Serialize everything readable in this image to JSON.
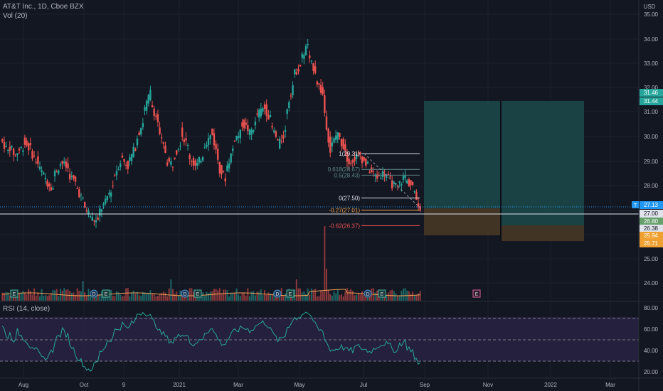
{
  "header": {
    "symbol_line": "AT&T Inc., 1D, Cboe BZX",
    "volume_label": "Vol (20)",
    "currency": "USD"
  },
  "rsi": {
    "label": "RSI (14, close)",
    "levels": [
      70,
      50,
      30
    ],
    "axis_ticks": [
      "80.00",
      "60.00",
      "40.00",
      "20.00"
    ]
  },
  "colors": {
    "background": "#131722",
    "up": "#26a69a",
    "down": "#ef5350",
    "grid": "#1e222d",
    "rsi_line": "#26a69a",
    "rsi_band": "#2a2345",
    "long_profit": "#1c4a4a",
    "long_loss": "#4a3a26",
    "current_price": "#2196f3"
  },
  "chart_data": {
    "type": "candlestick",
    "x_axis": [
      "Aug",
      "Oct",
      "9",
      "2021",
      "Mar",
      "May",
      "Jul",
      "Sep",
      "Nov",
      "2022",
      "Mar"
    ],
    "y_axis": [
      "35.00",
      "34.00",
      "33.00",
      "32.00",
      "31.00",
      "30.00",
      "29.00",
      "28.00",
      "25.00",
      "24.00"
    ],
    "ylim": [
      23.6,
      35.3
    ],
    "fib_levels": [
      {
        "label": "1(29.31)",
        "value": 29.31
      },
      {
        "label": "0.618(28.67)",
        "value": 28.67
      },
      {
        "label": "0.5(28.43)",
        "value": 28.43
      },
      {
        "label": "0(27.50)",
        "value": 27.5
      },
      {
        "label": "-0.27(27.01)",
        "value": 27.01
      },
      {
        "label": "-0.62(26.37)",
        "value": 26.37
      }
    ],
    "price_tags": [
      {
        "label": "31.46",
        "value": 31.46,
        "color": "#26a69a"
      },
      {
        "label": "31.44",
        "value": 31.44,
        "color": "#26a69a"
      },
      {
        "label": "T",
        "value": 27.13,
        "color": "#2196f3"
      },
      {
        "label": "27.13",
        "value": 27.13,
        "color": "#2196f3"
      },
      {
        "label": "27.00",
        "value": 26.99,
        "color": "#e0e3eb"
      },
      {
        "label": "26.80",
        "value": 26.8,
        "color": "#66a06a"
      },
      {
        "label": "26.38",
        "value": 26.38,
        "color": "#e0e3eb"
      },
      {
        "label": "25.94",
        "value": 25.94,
        "color": "#f0a030"
      },
      {
        "label": "25.71",
        "value": 25.71,
        "color": "#f0a030"
      }
    ],
    "close_path": [
      [
        29.9,
        29.4
      ],
      [
        29.7,
        29.2
      ],
      [
        29.3,
        29.6
      ],
      [
        29.8,
        29.5
      ],
      [
        29.4,
        28.9
      ],
      [
        28.8,
        28.3
      ],
      [
        28.2,
        27.9
      ],
      [
        28.4,
        28.9
      ],
      [
        29.0,
        28.7
      ],
      [
        28.5,
        28.1
      ],
      [
        28.0,
        27.4
      ],
      [
        27.2,
        26.8
      ],
      [
        26.7,
        26.5
      ],
      [
        26.9,
        27.3
      ],
      [
        27.4,
        28.0
      ],
      [
        28.3,
        29.0
      ],
      [
        29.2,
        28.8
      ],
      [
        28.9,
        29.6
      ],
      [
        29.8,
        30.6
      ],
      [
        30.9,
        31.8
      ],
      [
        31.4,
        30.6
      ],
      [
        30.2,
        29.4
      ],
      [
        29.0,
        28.9
      ],
      [
        29.1,
        29.8
      ],
      [
        30.2,
        29.6
      ],
      [
        29.3,
        28.8
      ],
      [
        28.7,
        29.3
      ],
      [
        29.6,
        30.0
      ],
      [
        30.4,
        29.1
      ],
      [
        28.8,
        28.3
      ],
      [
        28.6,
        29.5
      ],
      [
        29.9,
        30.1
      ],
      [
        30.6,
        30.3
      ],
      [
        30.0,
        30.5
      ],
      [
        30.8,
        31.1
      ],
      [
        31.3,
        30.7
      ],
      [
        30.5,
        29.8
      ],
      [
        29.6,
        30.2
      ],
      [
        30.9,
        32.1
      ],
      [
        32.5,
        32.9
      ],
      [
        33.1,
        33.8
      ],
      [
        33.2,
        32.7
      ],
      [
        32.4,
        31.7
      ],
      [
        31.5,
        29.4
      ],
      [
        29.5,
        30.2
      ],
      [
        30.0,
        29.5
      ],
      [
        29.2,
        28.9
      ],
      [
        29.1,
        29.3
      ],
      [
        29.2,
        28.8
      ],
      [
        28.7,
        28.4
      ],
      [
        28.3,
        28.5
      ],
      [
        28.6,
        28.2
      ],
      [
        28.1,
        27.9
      ],
      [
        28.0,
        28.4
      ],
      [
        28.2,
        28.0
      ],
      [
        27.8,
        27.1
      ]
    ],
    "rsi_path": [
      [
        66,
        52
      ],
      [
        58,
        48
      ],
      [
        60,
        52
      ],
      [
        54,
        44
      ],
      [
        47,
        38
      ],
      [
        36,
        30
      ],
      [
        34,
        40
      ],
      [
        48,
        55
      ],
      [
        60,
        54
      ],
      [
        50,
        38
      ],
      [
        36,
        28
      ],
      [
        25,
        22
      ],
      [
        22,
        30
      ],
      [
        36,
        44
      ],
      [
        48,
        52
      ],
      [
        58,
        62
      ],
      [
        66,
        60
      ],
      [
        62,
        68
      ],
      [
        74,
        76
      ],
      [
        78,
        72
      ],
      [
        70,
        62
      ],
      [
        58,
        54
      ],
      [
        52,
        48
      ],
      [
        50,
        54
      ],
      [
        58,
        54
      ],
      [
        50,
        44
      ],
      [
        46,
        52
      ],
      [
        56,
        60
      ],
      [
        62,
        52
      ],
      [
        48,
        46
      ],
      [
        48,
        56
      ],
      [
        58,
        60
      ],
      [
        62,
        60
      ],
      [
        58,
        62
      ],
      [
        64,
        66
      ],
      [
        68,
        62
      ],
      [
        58,
        50
      ],
      [
        48,
        54
      ],
      [
        60,
        68
      ],
      [
        70,
        72
      ],
      [
        74,
        76
      ],
      [
        72,
        66
      ],
      [
        62,
        58
      ],
      [
        56,
        40
      ],
      [
        40,
        42
      ],
      [
        44,
        42
      ],
      [
        40,
        40
      ],
      [
        42,
        44
      ],
      [
        42,
        40
      ],
      [
        38,
        42
      ],
      [
        44,
        46
      ],
      [
        48,
        44
      ],
      [
        42,
        40
      ],
      [
        46,
        48
      ],
      [
        44,
        40
      ],
      [
        32,
        28
      ]
    ]
  }
}
